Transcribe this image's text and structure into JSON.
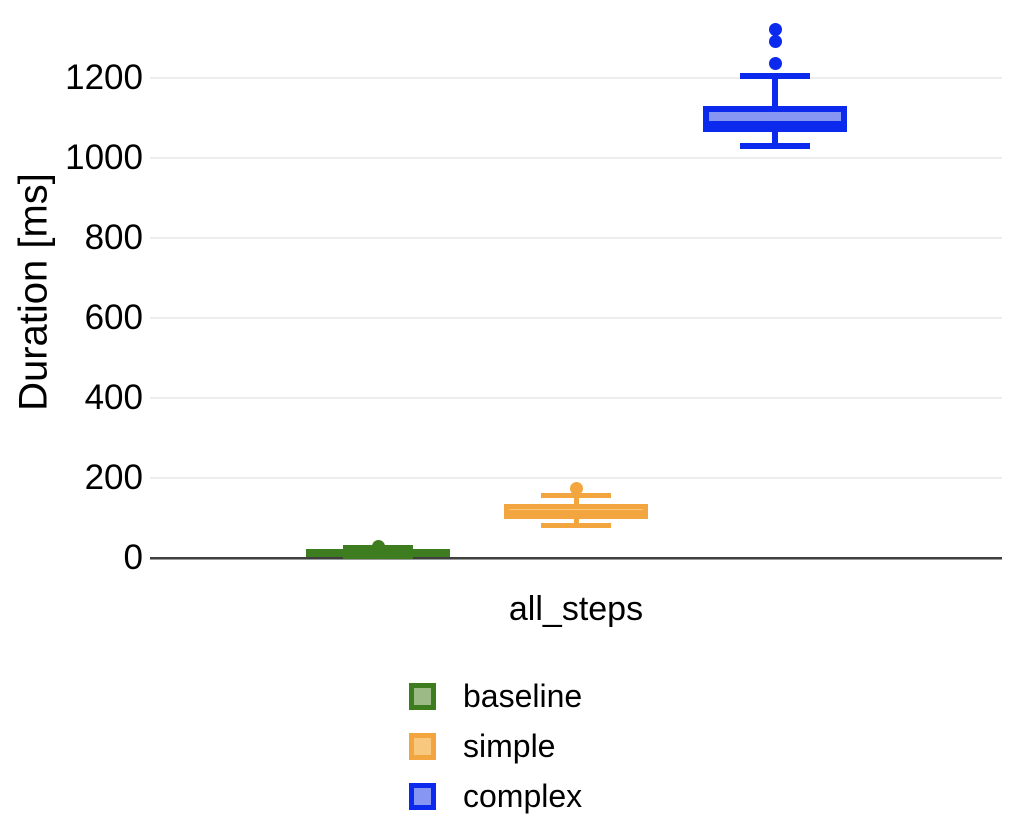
{
  "figure": {
    "background": "#ffffff",
    "y_axis_title": "Duration [ms]",
    "x_category_label": "all_steps",
    "grid_color": "#ededed",
    "axis_line_color": "#3f3f3f",
    "text_color": "#000000"
  },
  "chart_data": {
    "type": "boxplot",
    "title": "",
    "xlabel": "",
    "ylabel": "Duration [ms]",
    "categories": [
      "all_steps"
    ],
    "yticks": [
      0,
      200,
      400,
      600,
      800,
      1000,
      1200
    ],
    "ytick_labels": [
      "0",
      "200",
      "400",
      "600",
      "800",
      "1000",
      "1200"
    ],
    "ylim": [
      0,
      1350
    ],
    "grid": true,
    "legend_position": "bottom",
    "series": [
      {
        "name": "baseline",
        "color": "#3d7c1f",
        "fill": "#9cba85",
        "stats": {
          "whisker_low": 3,
          "q1": 8,
          "median": 15,
          "q3": 22,
          "whisker_high": 27,
          "outliers": [
            30
          ]
        }
      },
      {
        "name": "simple",
        "color": "#f3a63f",
        "fill": "#f8c87e",
        "stats": {
          "whisker_low": 82,
          "q1": 97,
          "median": 115,
          "q3": 135,
          "whisker_high": 157,
          "outliers": [
            175
          ]
        }
      },
      {
        "name": "complex",
        "color": "#0c29ee",
        "fill": "#8696f2",
        "stats": {
          "whisker_low": 1030,
          "q1": 1065,
          "median": 1085,
          "q3": 1130,
          "whisker_high": 1205,
          "outliers": [
            1237,
            1292,
            1322
          ]
        }
      }
    ]
  }
}
